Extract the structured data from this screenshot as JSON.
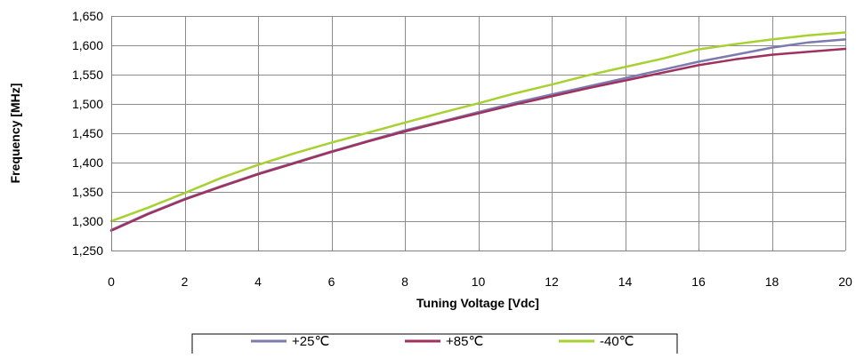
{
  "chart_data": {
    "type": "line",
    "title": "",
    "xlabel": "Tuning Voltage [Vdc]",
    "ylabel": "Frequency [MHz]",
    "xlim": [
      0,
      20
    ],
    "ylim": [
      1250,
      1650
    ],
    "x_ticks": [
      0,
      2,
      4,
      6,
      8,
      10,
      12,
      14,
      16,
      18,
      20
    ],
    "x_tick_labels": [
      "0",
      "2",
      "4",
      "6",
      "8",
      "10",
      "12",
      "14",
      "16",
      "18",
      "20"
    ],
    "y_ticks": [
      1250,
      1300,
      1350,
      1400,
      1450,
      1500,
      1550,
      1600,
      1650
    ],
    "y_tick_labels": [
      "1,250",
      "1,300",
      "1,350",
      "1,400",
      "1,450",
      "1,500",
      "1,550",
      "1,600",
      "1,650"
    ],
    "grid": true,
    "legend_position": "bottom",
    "x": [
      0,
      1,
      2,
      3,
      4,
      5,
      6,
      7,
      8,
      9,
      10,
      11,
      12,
      13,
      14,
      15,
      16,
      17,
      18,
      19,
      20
    ],
    "series": [
      {
        "name": "+25℃",
        "color": "#7b7bb0",
        "values": [
          1285,
          1313,
          1338,
          1360,
          1381,
          1400,
          1419,
          1437,
          1455,
          1470,
          1486,
          1502,
          1516,
          1530,
          1544,
          1558,
          1572,
          1584,
          1596,
          1605,
          1610
        ]
      },
      {
        "name": "+85℃",
        "color": "#a0305e",
        "values": [
          1284,
          1312,
          1337,
          1359,
          1380,
          1399,
          1418,
          1436,
          1453,
          1469,
          1484,
          1499,
          1513,
          1527,
          1540,
          1553,
          1566,
          1576,
          1584,
          1589,
          1594
        ]
      },
      {
        "name": "-40℃",
        "color": "#a6d130",
        "values": [
          1300,
          1323,
          1348,
          1374,
          1396,
          1416,
          1434,
          1451,
          1468,
          1485,
          1501,
          1518,
          1533,
          1549,
          1563,
          1577,
          1593,
          1602,
          1610,
          1617,
          1622
        ]
      }
    ]
  }
}
